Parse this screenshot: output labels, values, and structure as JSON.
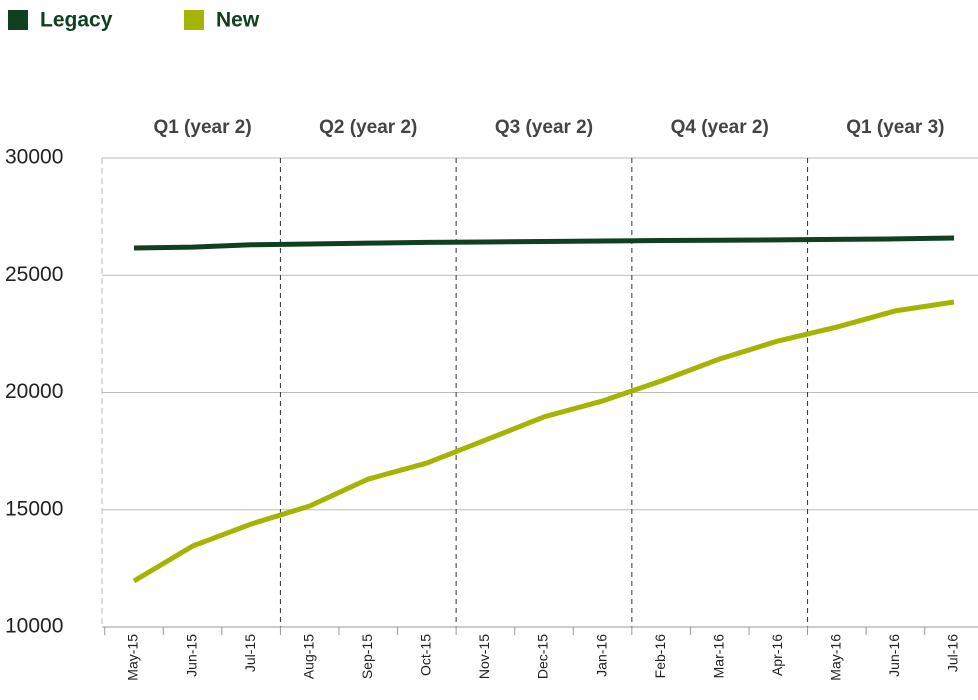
{
  "chart_data": {
    "type": "line",
    "categories": [
      "May-15",
      "Jun-15",
      "Jul-15",
      "Aug-15",
      "Sep-15",
      "Oct-15",
      "Nov-15",
      "Dec-15",
      "Jan-16",
      "Feb-16",
      "Mar-16",
      "Apr-16",
      "May-16",
      "Jun-16",
      "Jul-16"
    ],
    "periods": [
      "Q1 (year 2)",
      "Q2 (year 2)",
      "Q3 (year 2)",
      "Q4 (year 2)",
      "Q1 (year 3)"
    ],
    "series": [
      {
        "name": "Legacy",
        "color": "#0f4020",
        "values": [
          26160,
          26200,
          26300,
          26330,
          26370,
          26400,
          26420,
          26440,
          26460,
          26480,
          26490,
          26510,
          26530,
          26550,
          26590
        ]
      },
      {
        "name": "New",
        "color": "#a3b500",
        "values": [
          11960,
          13450,
          14390,
          15160,
          16310,
          16990,
          17970,
          18960,
          19640,
          20490,
          21430,
          22200,
          22790,
          23480,
          23860
        ]
      }
    ],
    "ylim": [
      10000,
      30000
    ],
    "yticks": [
      10000,
      15000,
      20000,
      25000,
      30000
    ],
    "grid": true,
    "legend": "top-left"
  }
}
